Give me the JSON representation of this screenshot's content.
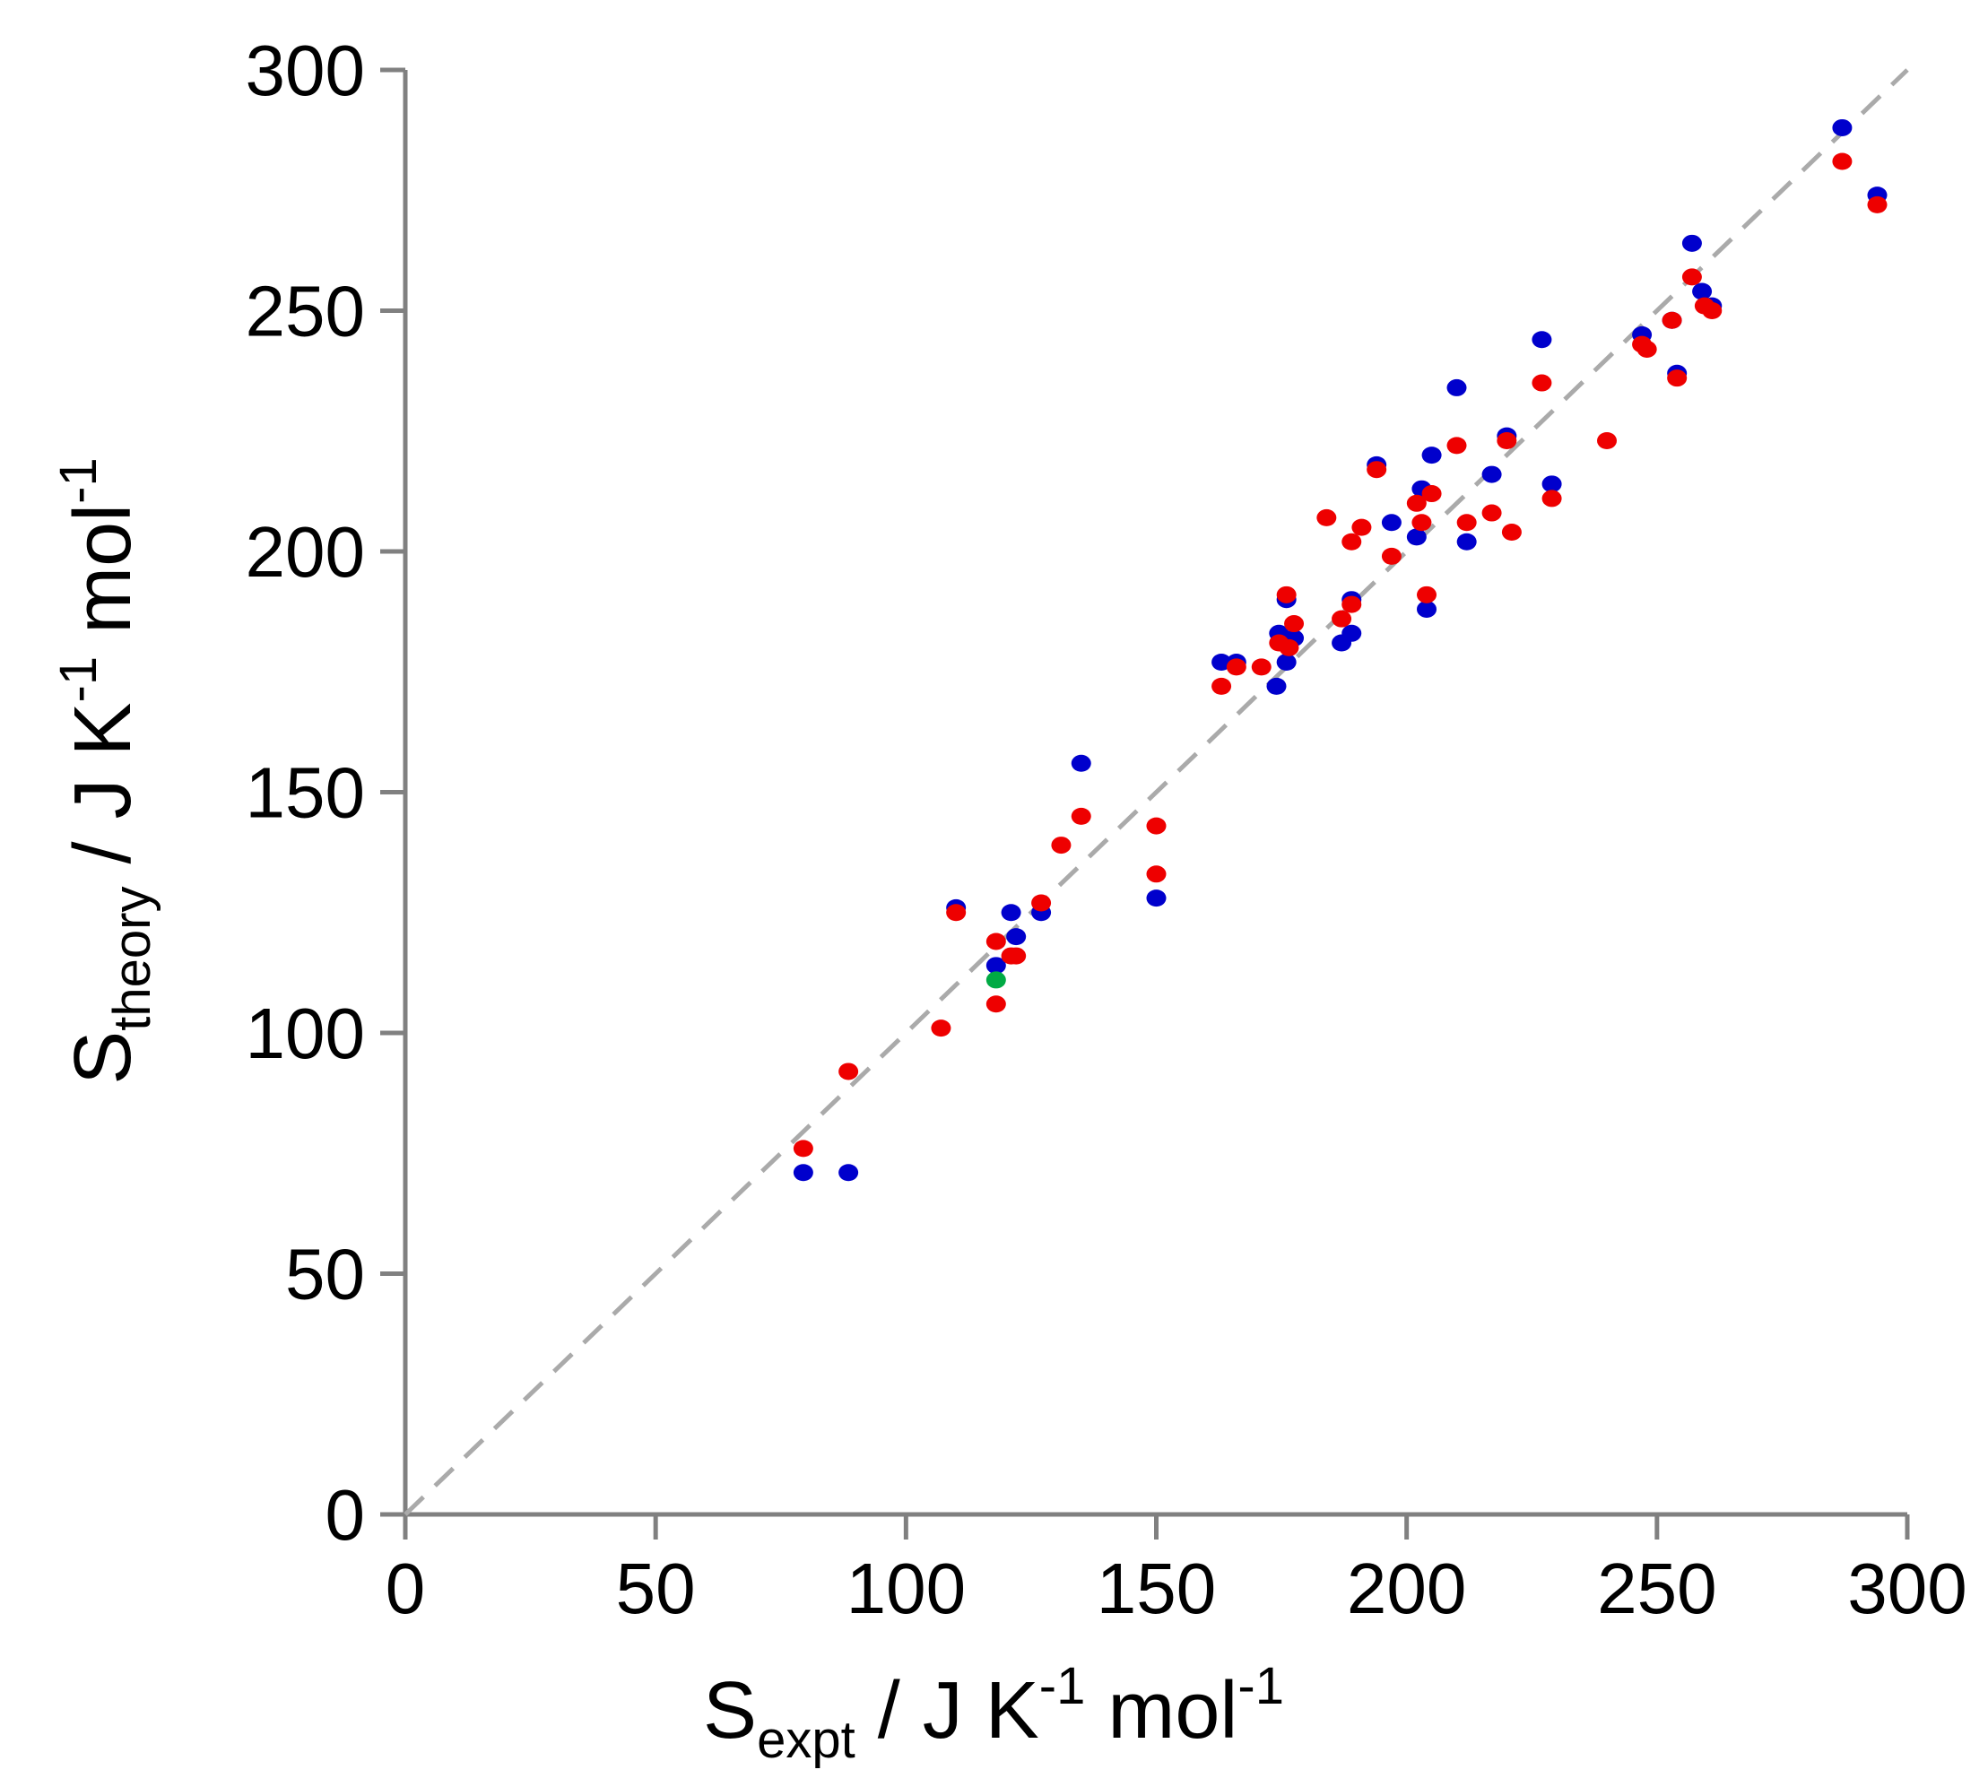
{
  "chart_data": {
    "type": "scatter",
    "title": "",
    "xlabel": {
      "main": "S",
      "sub": "expt",
      "rest1": " / J K",
      "sup1": "-1",
      "rest2": " mol",
      "sup2": "-1"
    },
    "ylabel": {
      "main": "S",
      "sub": "theory",
      "rest1": " / J K",
      "sup1": "-1",
      "rest2": " mol",
      "sup2": "-1"
    },
    "xlim": [
      0,
      300
    ],
    "ylim": [
      0,
      300
    ],
    "xticks": [
      0,
      50,
      100,
      150,
      200,
      250,
      300
    ],
    "yticks": [
      0,
      50,
      100,
      150,
      200,
      250,
      300
    ],
    "reference_line": {
      "from": [
        0,
        0
      ],
      "to": [
        300,
        300
      ],
      "style": "dashed",
      "color": "#aaaaaa"
    },
    "series": [
      {
        "name": "blue",
        "color": "#0000cc",
        "points": [
          [
            79.5,
            71
          ],
          [
            88.5,
            71
          ],
          [
            110,
            126
          ],
          [
            118,
            114
          ],
          [
            121,
            125
          ],
          [
            122,
            120
          ],
          [
            127,
            125
          ],
          [
            135,
            156
          ],
          [
            150,
            128
          ],
          [
            163,
            177
          ],
          [
            166,
            177
          ],
          [
            174,
            172
          ],
          [
            174.5,
            183
          ],
          [
            176,
            190
          ],
          [
            176,
            177
          ],
          [
            177.5,
            182
          ],
          [
            187,
            181
          ],
          [
            189,
            190
          ],
          [
            189,
            183
          ],
          [
            194,
            218
          ],
          [
            197,
            206
          ],
          [
            202,
            203
          ],
          [
            203,
            213
          ],
          [
            204,
            188
          ],
          [
            205,
            220
          ],
          [
            210,
            234
          ],
          [
            212,
            202
          ],
          [
            217,
            216
          ],
          [
            220,
            224
          ],
          [
            227,
            244
          ],
          [
            229,
            214
          ],
          [
            247,
            245
          ],
          [
            253,
            248
          ],
          [
            254,
            237
          ],
          [
            257,
            264
          ],
          [
            259,
            254
          ],
          [
            261,
            251
          ],
          [
            287,
            288
          ],
          [
            294,
            274
          ]
        ]
      },
      {
        "name": "red",
        "color": "#ee0000",
        "points": [
          [
            79.5,
            76
          ],
          [
            88.5,
            92
          ],
          [
            107,
            101
          ],
          [
            110,
            125
          ],
          [
            118,
            106
          ],
          [
            118,
            119
          ],
          [
            121,
            116
          ],
          [
            122,
            116
          ],
          [
            127,
            127
          ],
          [
            131,
            139
          ],
          [
            135,
            145
          ],
          [
            150,
            143
          ],
          [
            150,
            133
          ],
          [
            163,
            172
          ],
          [
            166,
            176
          ],
          [
            171,
            176
          ],
          [
            174.5,
            181
          ],
          [
            176,
            191
          ],
          [
            176.5,
            180
          ],
          [
            177.5,
            185
          ],
          [
            184,
            207
          ],
          [
            187,
            186
          ],
          [
            189,
            202
          ],
          [
            189,
            189
          ],
          [
            191,
            205
          ],
          [
            194,
            217
          ],
          [
            197,
            199
          ],
          [
            202,
            210
          ],
          [
            203,
            206
          ],
          [
            204,
            191
          ],
          [
            205,
            212
          ],
          [
            210,
            222
          ],
          [
            212,
            206
          ],
          [
            217,
            208
          ],
          [
            220,
            223
          ],
          [
            221,
            204
          ],
          [
            227,
            235
          ],
          [
            229,
            211
          ],
          [
            240,
            223
          ],
          [
            247,
            243
          ],
          [
            248,
            242
          ],
          [
            253,
            248
          ],
          [
            254,
            236
          ],
          [
            257,
            257
          ],
          [
            259.5,
            251
          ],
          [
            261,
            250
          ],
          [
            287,
            281
          ],
          [
            294,
            272
          ]
        ]
      },
      {
        "name": "green",
        "color": "#00aa44",
        "points": [
          [
            118,
            111
          ]
        ]
      }
    ]
  }
}
